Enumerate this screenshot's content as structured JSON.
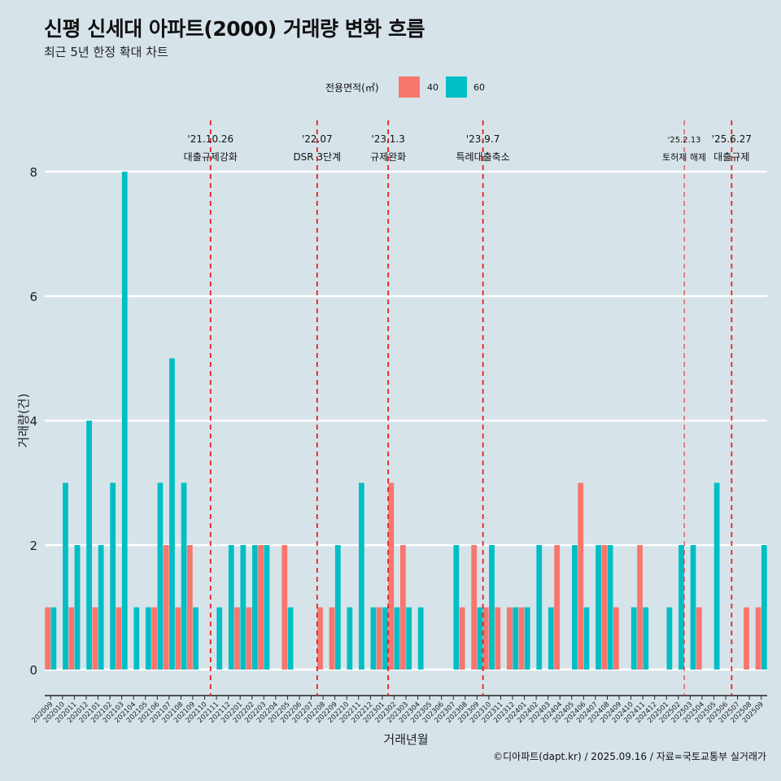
{
  "title": "신평 신세대 아파트(2000) 거래량 변화 흐름",
  "subtitle": "최근 5년 한정 확대 차트",
  "caption": "©디아파트(dapt.kr) / 2025.09.16 / 자료=국토교통부 실거래가",
  "legend": {
    "title": "전용면적(㎡)",
    "items": [
      {
        "label": "40",
        "color": "#f8766d"
      },
      {
        "label": "60",
        "color": "#00bfc4"
      }
    ]
  },
  "chart_data": {
    "type": "bar",
    "xlabel": "거래년월",
    "ylabel": "거래량(건)",
    "ylim": [
      0,
      8.4
    ],
    "yticks": [
      0,
      2,
      4,
      6,
      8
    ],
    "grid": true,
    "legend_position": "top",
    "categories": [
      "202009",
      "202010",
      "202011",
      "202012",
      "202101",
      "202102",
      "202103",
      "202104",
      "202105",
      "202106",
      "202107",
      "202108",
      "202109",
      "202110",
      "202111",
      "202112",
      "202201",
      "202202",
      "202203",
      "202204",
      "202205",
      "202206",
      "202207",
      "202208",
      "202209",
      "202210",
      "202211",
      "202212",
      "202301",
      "202302",
      "202303",
      "202304",
      "202305",
      "202306",
      "202307",
      "202308",
      "202309",
      "202310",
      "202311",
      "202312",
      "202401",
      "202402",
      "202403",
      "202404",
      "202405",
      "202406",
      "202407",
      "202408",
      "202409",
      "202410",
      "202411",
      "202412",
      "202501",
      "202502",
      "202503",
      "202504",
      "202505",
      "202506",
      "202507",
      "202508",
      "202509"
    ],
    "series": [
      {
        "name": "40",
        "color": "#f8766d",
        "values": [
          1,
          0,
          1,
          0,
          1,
          0,
          1,
          0,
          0,
          1,
          2,
          1,
          2,
          0,
          0,
          0,
          1,
          1,
          2,
          0,
          2,
          0,
          0,
          1,
          1,
          0,
          0,
          0,
          1,
          3,
          2,
          0,
          0,
          0,
          0,
          1,
          2,
          1,
          1,
          1,
          1,
          0,
          0,
          2,
          0,
          3,
          0,
          2,
          1,
          0,
          2,
          0,
          0,
          0,
          0,
          1,
          0,
          0,
          0,
          1,
          1
        ]
      },
      {
        "name": "60",
        "color": "#00bfc4",
        "values": [
          1,
          3,
          2,
          4,
          2,
          3,
          8,
          1,
          1,
          3,
          5,
          3,
          1,
          0,
          1,
          2,
          2,
          2,
          2,
          0,
          1,
          0,
          0,
          0,
          2,
          1,
          3,
          1,
          1,
          1,
          1,
          1,
          0,
          0,
          2,
          0,
          1,
          2,
          0,
          1,
          1,
          2,
          1,
          0,
          2,
          1,
          2,
          2,
          0,
          1,
          1,
          0,
          1,
          2,
          2,
          0,
          3,
          0,
          0,
          0,
          2
        ]
      }
    ],
    "annotations": [
      {
        "date": "'21.10.26",
        "label": "대출규제강화",
        "after": "202110"
      },
      {
        "date": "'22.07",
        "label": "DSR 3단계",
        "after": "202207"
      },
      {
        "date": "'23.1.3",
        "label": "규제완화",
        "after": "202301"
      },
      {
        "date": "'23.9.7",
        "label": "특례대출축소",
        "after": "202309"
      },
      {
        "date": "'25.2.13",
        "label": "토허제 해제",
        "after": "202502"
      },
      {
        "date": "'25.6.27",
        "label": "대출규제",
        "after": "202506"
      }
    ]
  }
}
